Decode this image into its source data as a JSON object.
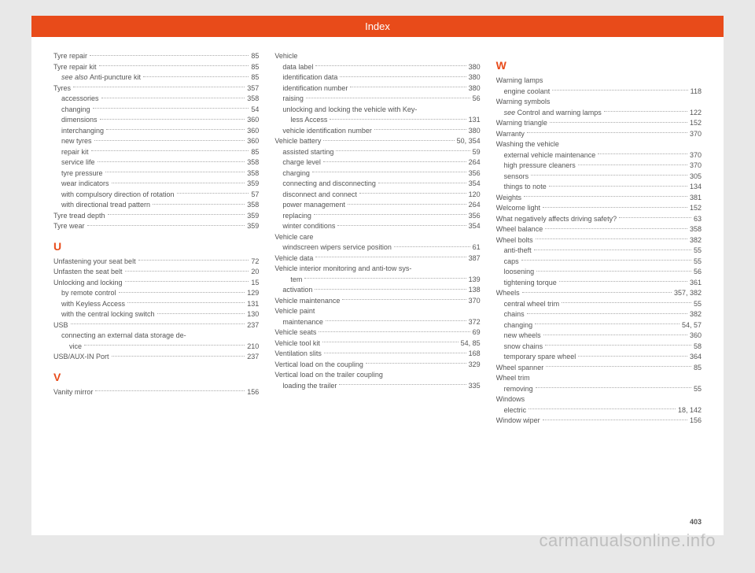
{
  "header": "Index",
  "page_number": "403",
  "watermark": "carmanualsonline.info",
  "columns": [
    {
      "items": [
        {
          "type": "entry",
          "label": "Tyre repair",
          "page": "85"
        },
        {
          "type": "entry",
          "label": "Tyre repair kit",
          "page": "85"
        },
        {
          "type": "sub",
          "italic_prefix": "see also ",
          "label": "Anti-puncture kit",
          "page": "85"
        },
        {
          "type": "entry",
          "label": "Tyres",
          "page": "357"
        },
        {
          "type": "sub",
          "label": "accessories",
          "page": "358"
        },
        {
          "type": "sub",
          "label": "changing",
          "page": "54"
        },
        {
          "type": "sub",
          "label": "dimensions",
          "page": "360"
        },
        {
          "type": "sub",
          "label": "interchanging",
          "page": "360"
        },
        {
          "type": "sub",
          "label": "new tyres",
          "page": "360"
        },
        {
          "type": "sub",
          "label": "repair kit",
          "page": "85"
        },
        {
          "type": "sub",
          "label": "service life",
          "page": "358"
        },
        {
          "type": "sub",
          "label": "tyre pressure",
          "page": "358"
        },
        {
          "type": "sub",
          "label": "wear indicators",
          "page": "359"
        },
        {
          "type": "sub",
          "label": "with compulsory direction of rotation",
          "page": "57"
        },
        {
          "type": "sub",
          "label": "with directional tread pattern",
          "page": "358"
        },
        {
          "type": "entry",
          "label": "Tyre tread depth",
          "page": "359"
        },
        {
          "type": "entry",
          "label": "Tyre wear",
          "page": "359"
        },
        {
          "type": "letter",
          "label": "U"
        },
        {
          "type": "entry",
          "label": "Unfastening your seat belt",
          "page": "72"
        },
        {
          "type": "entry",
          "label": "Unfasten the seat belt",
          "page": "20"
        },
        {
          "type": "entry",
          "label": "Unlocking and locking",
          "page": "15"
        },
        {
          "type": "sub",
          "label": "by remote control",
          "page": "129"
        },
        {
          "type": "sub",
          "label": "with Keyless Access",
          "page": "131"
        },
        {
          "type": "sub",
          "label": "with the central locking switch",
          "page": "130"
        },
        {
          "type": "entry",
          "label": "USB",
          "page": "237"
        },
        {
          "type": "sub",
          "label": "connecting an external data storage de-"
        },
        {
          "type": "sub2",
          "label": "vice",
          "page": "210"
        },
        {
          "type": "entry",
          "label": "USB/AUX-IN Port",
          "page": "237"
        },
        {
          "type": "letter",
          "label": "V"
        },
        {
          "type": "entry",
          "label": "Vanity mirror",
          "page": "156"
        }
      ]
    },
    {
      "items": [
        {
          "type": "entry",
          "label": "Vehicle"
        },
        {
          "type": "sub",
          "label": "data label",
          "page": "380"
        },
        {
          "type": "sub",
          "label": "identification data",
          "page": "380"
        },
        {
          "type": "sub",
          "label": "identification number",
          "page": "380"
        },
        {
          "type": "sub",
          "label": "raising",
          "page": "56"
        },
        {
          "type": "sub",
          "label": "unlocking and locking the vehicle with Key-"
        },
        {
          "type": "sub2",
          "label": "less Access",
          "page": "131"
        },
        {
          "type": "sub",
          "label": "vehicle identification number",
          "page": "380"
        },
        {
          "type": "entry",
          "label": "Vehicle battery",
          "page": "50, 354"
        },
        {
          "type": "sub",
          "label": "assisted starting",
          "page": "59"
        },
        {
          "type": "sub",
          "label": "charge level",
          "page": "264"
        },
        {
          "type": "sub",
          "label": "charging",
          "page": "356"
        },
        {
          "type": "sub",
          "label": "connecting and disconnecting",
          "page": "354"
        },
        {
          "type": "sub",
          "label": "disconnect and connect",
          "page": "120"
        },
        {
          "type": "sub",
          "label": "power management",
          "page": "264"
        },
        {
          "type": "sub",
          "label": "replacing",
          "page": "356"
        },
        {
          "type": "sub",
          "label": "winter conditions",
          "page": "354"
        },
        {
          "type": "entry",
          "label": "Vehicle care"
        },
        {
          "type": "sub",
          "label": "windscreen wipers service position",
          "page": "61"
        },
        {
          "type": "entry",
          "label": "Vehicle data",
          "page": "387"
        },
        {
          "type": "entry",
          "label": "Vehicle interior monitoring and anti-tow sys-"
        },
        {
          "type": "sub2",
          "label": "tem",
          "page": "139"
        },
        {
          "type": "sub",
          "label": "activation",
          "page": "138"
        },
        {
          "type": "entry",
          "label": "Vehicle maintenance",
          "page": "370"
        },
        {
          "type": "entry",
          "label": "Vehicle paint"
        },
        {
          "type": "sub",
          "label": "maintenance",
          "page": "372"
        },
        {
          "type": "entry",
          "label": "Vehicle seats",
          "page": "69"
        },
        {
          "type": "entry",
          "label": "Vehicle tool kit",
          "page": "54, 85"
        },
        {
          "type": "entry",
          "label": "Ventilation slits",
          "page": "168"
        },
        {
          "type": "entry",
          "label": "Vertical load on the coupling",
          "page": "329"
        },
        {
          "type": "entry",
          "label": "Vertical load on the trailer coupling"
        },
        {
          "type": "sub",
          "label": "loading the trailer",
          "page": "335"
        }
      ]
    },
    {
      "items": [
        {
          "type": "letter",
          "label": "W"
        },
        {
          "type": "entry",
          "label": "Warning lamps"
        },
        {
          "type": "sub",
          "label": "engine coolant",
          "page": "118"
        },
        {
          "type": "entry",
          "label": "Warning symbols"
        },
        {
          "type": "sub",
          "italic_prefix": "see ",
          "label": "Control and warning lamps",
          "page": "122"
        },
        {
          "type": "entry",
          "label": "Warning triangle",
          "page": "152"
        },
        {
          "type": "entry",
          "label": "Warranty",
          "page": "370"
        },
        {
          "type": "entry",
          "label": "Washing the vehicle"
        },
        {
          "type": "sub",
          "label": "external vehicle maintenance",
          "page": "370"
        },
        {
          "type": "sub",
          "label": "high pressure cleaners",
          "page": "370"
        },
        {
          "type": "sub",
          "label": "sensors",
          "page": "305"
        },
        {
          "type": "sub",
          "label": "things to note",
          "page": "134"
        },
        {
          "type": "entry",
          "label": "Weights",
          "page": "381"
        },
        {
          "type": "entry",
          "label": "Welcome light",
          "page": "152"
        },
        {
          "type": "entry",
          "label": "What negatively affects driving safety?",
          "page": "63"
        },
        {
          "type": "entry",
          "label": "Wheel balance",
          "page": "358"
        },
        {
          "type": "entry",
          "label": "Wheel bolts",
          "page": "382"
        },
        {
          "type": "sub",
          "label": "anti-theft",
          "page": "55"
        },
        {
          "type": "sub",
          "label": "caps",
          "page": "55"
        },
        {
          "type": "sub",
          "label": "loosening",
          "page": "56"
        },
        {
          "type": "sub",
          "label": "tightening torque",
          "page": "361"
        },
        {
          "type": "entry",
          "label": "Wheels",
          "page": "357, 382"
        },
        {
          "type": "sub",
          "label": "central wheel trim",
          "page": "55"
        },
        {
          "type": "sub",
          "label": "chains",
          "page": "382"
        },
        {
          "type": "sub",
          "label": "changing",
          "page": "54, 57"
        },
        {
          "type": "sub",
          "label": "new wheels",
          "page": "360"
        },
        {
          "type": "sub",
          "label": "snow chains",
          "page": "58"
        },
        {
          "type": "sub",
          "label": "temporary spare wheel",
          "page": "364"
        },
        {
          "type": "entry",
          "label": "Wheel spanner",
          "page": "85"
        },
        {
          "type": "entry",
          "label": "Wheel trim"
        },
        {
          "type": "sub",
          "label": "removing",
          "page": "55"
        },
        {
          "type": "entry",
          "label": "Windows"
        },
        {
          "type": "sub",
          "label": "electric",
          "page": "18, 142"
        },
        {
          "type": "entry",
          "label": "Window wiper",
          "page": "156"
        }
      ]
    }
  ]
}
